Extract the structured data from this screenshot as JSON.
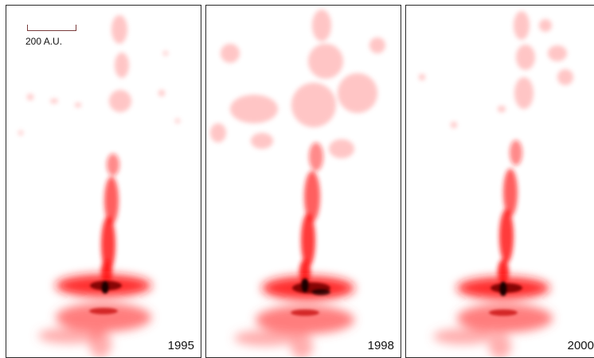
{
  "scale_bar": {
    "label": "200 A.U."
  },
  "panels": [
    {
      "year": "1995"
    },
    {
      "year": "1998"
    },
    {
      "year": "2000"
    }
  ],
  "colors": {
    "emission": "#ff3b3b",
    "core": "#1a0000",
    "frame": "#2a2a2a"
  }
}
